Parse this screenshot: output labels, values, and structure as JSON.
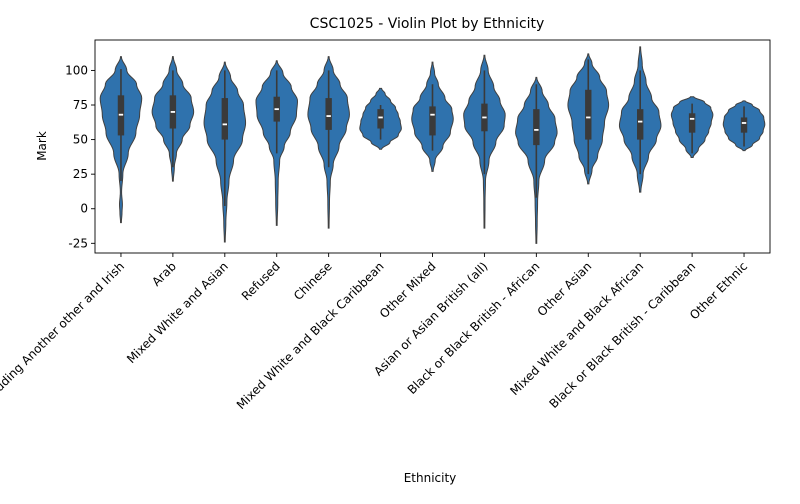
{
  "chart_data": {
    "type": "violin",
    "title": "CSC1025 - Violin Plot by Ethnicity",
    "xlabel": "Ethnicity",
    "ylabel": "Mark",
    "ylim": [
      -32,
      122
    ],
    "yticks": [
      -25,
      0,
      25,
      50,
      75,
      100
    ],
    "grid": false,
    "legend": "none",
    "color": "#2f72ad",
    "box_color": "#3a3a3a",
    "median_color": "#ffffff",
    "categories": [
      "White including Another other and Irish",
      "Arab",
      "Mixed White and Asian",
      "Refused",
      "Chinese",
      "Mixed White and Black Caribbean",
      "Other Mixed",
      "Asian or Asian British (all)",
      "Black or Black British - African",
      "Other Asian",
      "Mixed White and Black African",
      "Black or Black British - Caribbean",
      "Other Ethnic"
    ],
    "violins": [
      {
        "min": -10,
        "max": 110,
        "q1": 53,
        "median": 68,
        "q3": 82,
        "whisker_low": 20,
        "whisker_high": 101,
        "profile": [
          [
            -10,
            0.02
          ],
          [
            -3,
            0.05
          ],
          [
            3,
            0.07
          ],
          [
            12,
            0.03
          ],
          [
            25,
            0.09
          ],
          [
            40,
            0.35
          ],
          [
            55,
            0.72
          ],
          [
            68,
            0.9
          ],
          [
            80,
            1.0
          ],
          [
            90,
            0.75
          ],
          [
            100,
            0.28
          ],
          [
            110,
            0.02
          ]
        ]
      },
      {
        "min": 20,
        "max": 110,
        "q1": 58,
        "median": 70,
        "q3": 82,
        "whisker_low": 30,
        "whisker_high": 100,
        "profile": [
          [
            20,
            0.02
          ],
          [
            30,
            0.07
          ],
          [
            40,
            0.17
          ],
          [
            50,
            0.45
          ],
          [
            60,
            0.82
          ],
          [
            70,
            1.0
          ],
          [
            80,
            0.88
          ],
          [
            90,
            0.48
          ],
          [
            100,
            0.18
          ],
          [
            110,
            0.02
          ]
        ]
      },
      {
        "min": -24,
        "max": 106,
        "q1": 50,
        "median": 61,
        "q3": 80,
        "whisker_low": 2,
        "whisker_high": 100,
        "profile": [
          [
            -24,
            0.02
          ],
          [
            -10,
            0.05
          ],
          [
            5,
            0.1
          ],
          [
            20,
            0.2
          ],
          [
            35,
            0.42
          ],
          [
            50,
            0.85
          ],
          [
            62,
            1.0
          ],
          [
            75,
            0.9
          ],
          [
            85,
            0.62
          ],
          [
            95,
            0.28
          ],
          [
            106,
            0.02
          ]
        ]
      },
      {
        "min": -12,
        "max": 107,
        "q1": 63,
        "median": 72,
        "q3": 81,
        "whisker_low": 40,
        "whisker_high": 100,
        "profile": [
          [
            -12,
            0.02
          ],
          [
            5,
            0.05
          ],
          [
            20,
            0.07
          ],
          [
            35,
            0.14
          ],
          [
            45,
            0.36
          ],
          [
            55,
            0.65
          ],
          [
            68,
            0.95
          ],
          [
            78,
            1.0
          ],
          [
            88,
            0.7
          ],
          [
            98,
            0.3
          ],
          [
            107,
            0.02
          ]
        ]
      },
      {
        "min": -14,
        "max": 110,
        "q1": 57,
        "median": 67,
        "q3": 80,
        "whisker_low": 30,
        "whisker_high": 100,
        "profile": [
          [
            -14,
            0.02
          ],
          [
            5,
            0.04
          ],
          [
            20,
            0.08
          ],
          [
            32,
            0.22
          ],
          [
            45,
            0.5
          ],
          [
            58,
            0.85
          ],
          [
            68,
            1.0
          ],
          [
            80,
            0.9
          ],
          [
            90,
            0.55
          ],
          [
            100,
            0.22
          ],
          [
            110,
            0.02
          ]
        ]
      },
      {
        "min": 43,
        "max": 87,
        "q1": 58,
        "median": 66,
        "q3": 72,
        "whisker_low": 50,
        "whisker_high": 75,
        "profile": [
          [
            43,
            0.05
          ],
          [
            48,
            0.45
          ],
          [
            53,
            0.85
          ],
          [
            58,
            1.0
          ],
          [
            63,
            0.95
          ],
          [
            68,
            0.85
          ],
          [
            73,
            0.72
          ],
          [
            78,
            0.48
          ],
          [
            83,
            0.22
          ],
          [
            87,
            0.05
          ]
        ]
      },
      {
        "min": 27,
        "max": 106,
        "q1": 53,
        "median": 68,
        "q3": 74,
        "whisker_low": 42,
        "whisker_high": 90,
        "profile": [
          [
            27,
            0.03
          ],
          [
            35,
            0.13
          ],
          [
            45,
            0.5
          ],
          [
            55,
            0.86
          ],
          [
            65,
            1.0
          ],
          [
            72,
            0.93
          ],
          [
            80,
            0.6
          ],
          [
            90,
            0.28
          ],
          [
            98,
            0.1
          ],
          [
            106,
            0.02
          ]
        ]
      },
      {
        "min": -14,
        "max": 111,
        "q1": 56,
        "median": 66,
        "q3": 76,
        "whisker_low": 25,
        "whisker_high": 100,
        "profile": [
          [
            -14,
            0.02
          ],
          [
            5,
            0.03
          ],
          [
            20,
            0.05
          ],
          [
            35,
            0.22
          ],
          [
            48,
            0.55
          ],
          [
            60,
            0.95
          ],
          [
            68,
            1.0
          ],
          [
            78,
            0.75
          ],
          [
            88,
            0.45
          ],
          [
            100,
            0.18
          ],
          [
            111,
            0.02
          ]
        ]
      },
      {
        "min": -25,
        "max": 95,
        "q1": 46,
        "median": 57,
        "q3": 72,
        "whisker_low": 8,
        "whisker_high": 90,
        "profile": [
          [
            -25,
            0.02
          ],
          [
            -10,
            0.04
          ],
          [
            5,
            0.06
          ],
          [
            20,
            0.12
          ],
          [
            35,
            0.4
          ],
          [
            48,
            0.88
          ],
          [
            55,
            1.0
          ],
          [
            65,
            0.9
          ],
          [
            75,
            0.58
          ],
          [
            85,
            0.28
          ],
          [
            95,
            0.02
          ]
        ]
      },
      {
        "min": 18,
        "max": 112,
        "q1": 50,
        "median": 66,
        "q3": 86,
        "whisker_low": 25,
        "whisker_high": 108,
        "profile": [
          [
            18,
            0.03
          ],
          [
            28,
            0.18
          ],
          [
            38,
            0.45
          ],
          [
            50,
            0.68
          ],
          [
            62,
            0.78
          ],
          [
            75,
            0.98
          ],
          [
            85,
            0.88
          ],
          [
            95,
            0.55
          ],
          [
            105,
            0.18
          ],
          [
            112,
            0.02
          ]
        ]
      },
      {
        "min": 12,
        "max": 117,
        "q1": 50,
        "median": 63,
        "q3": 72,
        "whisker_low": 25,
        "whisker_high": 100,
        "profile": [
          [
            12,
            0.03
          ],
          [
            25,
            0.14
          ],
          [
            38,
            0.4
          ],
          [
            50,
            0.78
          ],
          [
            60,
            1.0
          ],
          [
            70,
            0.9
          ],
          [
            80,
            0.55
          ],
          [
            92,
            0.28
          ],
          [
            104,
            0.1
          ],
          [
            117,
            0.02
          ]
        ]
      },
      {
        "min": 37,
        "max": 81,
        "q1": 55,
        "median": 65,
        "q3": 69,
        "whisker_low": 40,
        "whisker_high": 76,
        "profile": [
          [
            37,
            0.05
          ],
          [
            43,
            0.3
          ],
          [
            50,
            0.62
          ],
          [
            56,
            0.8
          ],
          [
            62,
            0.92
          ],
          [
            68,
            1.0
          ],
          [
            73,
            0.9
          ],
          [
            77,
            0.6
          ],
          [
            81,
            0.08
          ]
        ]
      },
      {
        "min": 42,
        "max": 78,
        "q1": 55,
        "median": 62,
        "q3": 66,
        "whisker_low": 45,
        "whisker_high": 74,
        "profile": [
          [
            42,
            0.05
          ],
          [
            46,
            0.4
          ],
          [
            51,
            0.75
          ],
          [
            56,
            0.92
          ],
          [
            61,
            1.0
          ],
          [
            66,
            0.95
          ],
          [
            71,
            0.75
          ],
          [
            75,
            0.4
          ],
          [
            78,
            0.05
          ]
        ]
      }
    ]
  }
}
